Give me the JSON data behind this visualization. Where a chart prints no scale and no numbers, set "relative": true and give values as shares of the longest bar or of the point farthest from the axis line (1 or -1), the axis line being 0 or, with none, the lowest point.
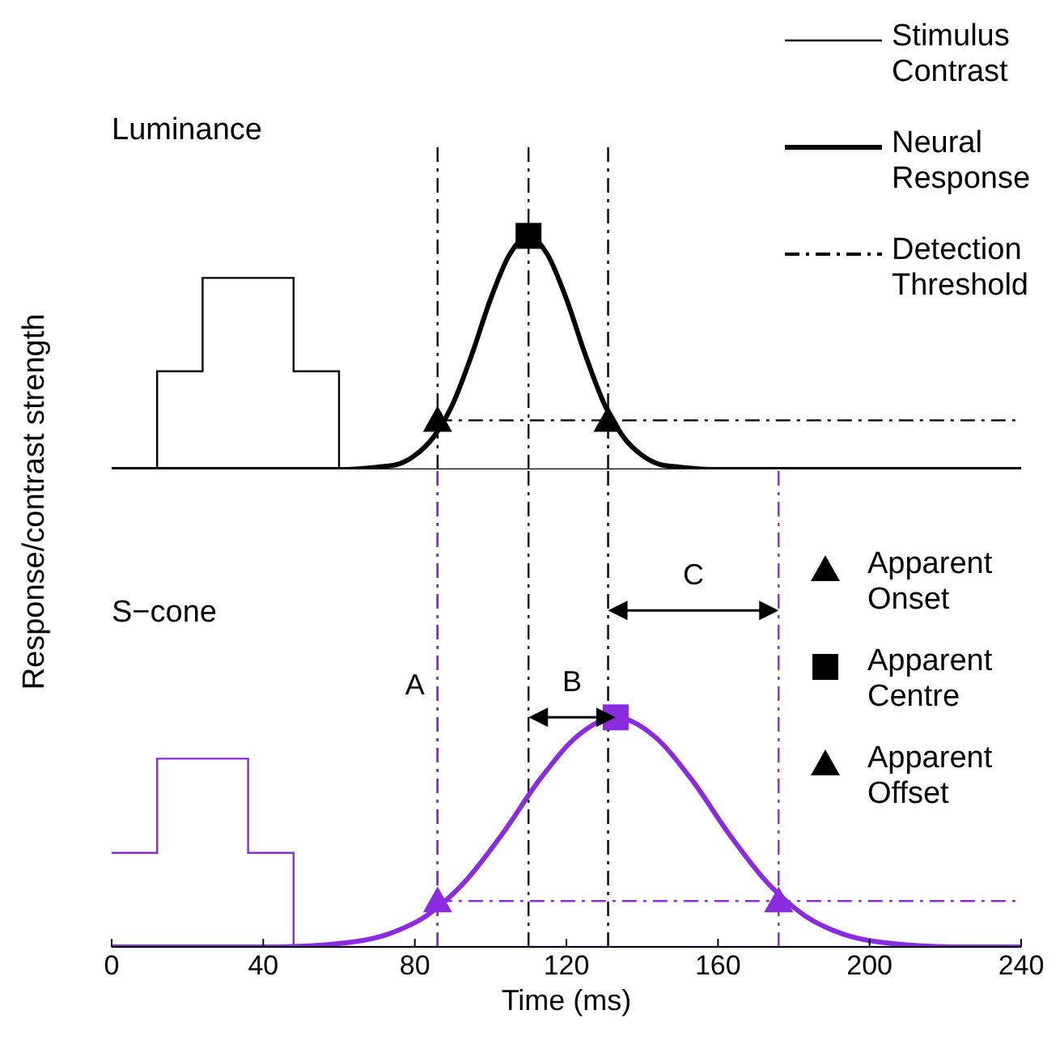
{
  "chart_data": [
    {
      "type": "line",
      "title": "Luminance",
      "relative": true,
      "xlim": [
        0,
        240
      ],
      "tick_labels": false,
      "legend": "right",
      "series": [
        {
          "name": "Stimulus Contrast",
          "type": "step",
          "color": "#000000",
          "x": [
            0,
            12,
            24,
            48,
            60,
            240
          ],
          "values": [
            0,
            0.42,
            0.82,
            0.42,
            0,
            0
          ]
        },
        {
          "name": "Neural Response",
          "color": "#000000",
          "x": [
            0,
            60,
            70,
            75,
            80,
            85,
            90,
            95,
            100,
            105,
            110,
            115,
            120,
            125,
            130,
            135,
            140,
            145,
            150,
            160,
            240
          ],
          "values": [
            0,
            0,
            0.01,
            0.02,
            0.06,
            0.14,
            0.28,
            0.49,
            0.73,
            0.92,
            1,
            0.92,
            0.73,
            0.49,
            0.28,
            0.14,
            0.06,
            0.02,
            0.01,
            0,
            0
          ]
        },
        {
          "name": "Detection Threshold",
          "line_style": "dashed",
          "color": "#000000",
          "x": [
            86,
            240
          ],
          "values": [
            0.21,
            0.21
          ]
        },
        {
          "name": "Apparent Onset",
          "type": "scatter",
          "marker": "triangle",
          "color": "#000000",
          "x": [
            86
          ],
          "values": [
            0.21
          ]
        },
        {
          "name": "Apparent Centre",
          "type": "scatter",
          "marker": "square",
          "color": "#000000",
          "x": [
            110
          ],
          "values": [
            1
          ]
        },
        {
          "name": "Apparent Offset",
          "type": "scatter",
          "marker": "triangle",
          "color": "#000000",
          "x": [
            131
          ],
          "values": [
            0.21
          ]
        }
      ],
      "ref_lines": [
        {
          "axis": "x",
          "value": 86,
          "color": "#000000",
          "line_style": "dashed"
        },
        {
          "axis": "x",
          "value": 110,
          "color": "#000000",
          "line_style": "dashed"
        },
        {
          "axis": "x",
          "value": 131,
          "color": "#000000",
          "line_style": "dashed"
        }
      ]
    },
    {
      "type": "line",
      "title": "S−cone",
      "relative": true,
      "xlim": [
        0,
        240
      ],
      "xticks": [
        0,
        40,
        80,
        120,
        160,
        200,
        240
      ],
      "xlabel": "Time (ms)",
      "ylabel": "Response/contrast strength",
      "series": [
        {
          "type": "step",
          "color": "#8a2be2",
          "x": [
            0,
            12,
            36,
            48,
            240
          ],
          "values": [
            0.41,
            0.82,
            0.41,
            0,
            0
          ]
        },
        {
          "color": "#8a2be2",
          "x": [
            0,
            43,
            63,
            73,
            83,
            93,
            103,
            113,
            123,
            133,
            143,
            153,
            163,
            173,
            183,
            193,
            203,
            223,
            240
          ],
          "values": [
            0,
            0,
            0.02,
            0.056,
            0.135,
            0.28,
            0.49,
            0.73,
            0.92,
            1,
            0.92,
            0.73,
            0.49,
            0.28,
            0.135,
            0.056,
            0.02,
            0,
            0
          ]
        },
        {
          "line_style": "dashed",
          "color": "#8a2be2",
          "x": [
            86,
            240
          ],
          "values": [
            0.2,
            0.2
          ]
        },
        {
          "type": "scatter",
          "marker": "triangle",
          "color": "#8a2be2",
          "x": [
            86
          ],
          "values": [
            0.2
          ]
        },
        {
          "type": "scatter",
          "marker": "square",
          "color": "#8a2be2",
          "x": [
            133
          ],
          "values": [
            1
          ]
        },
        {
          "type": "scatter",
          "marker": "triangle",
          "color": "#8a2be2",
          "x": [
            176
          ],
          "values": [
            0.2
          ]
        }
      ],
      "ref_lines": [
        {
          "axis": "x",
          "value": 86,
          "color": "#000000",
          "line_style": "dashed"
        },
        {
          "axis": "x",
          "value": 110,
          "color": "#000000",
          "line_style": "dashed"
        },
        {
          "axis": "x",
          "value": 131,
          "color": "#000000",
          "line_style": "dashed"
        },
        {
          "axis": "x",
          "value": 86,
          "color": "#8a2be2",
          "line_style": "dashed"
        },
        {
          "axis": "x",
          "value": 176,
          "color": "#8a2be2",
          "line_style": "dashed"
        }
      ],
      "annotations": [
        "A",
        "B",
        "C"
      ]
    }
  ]
}
